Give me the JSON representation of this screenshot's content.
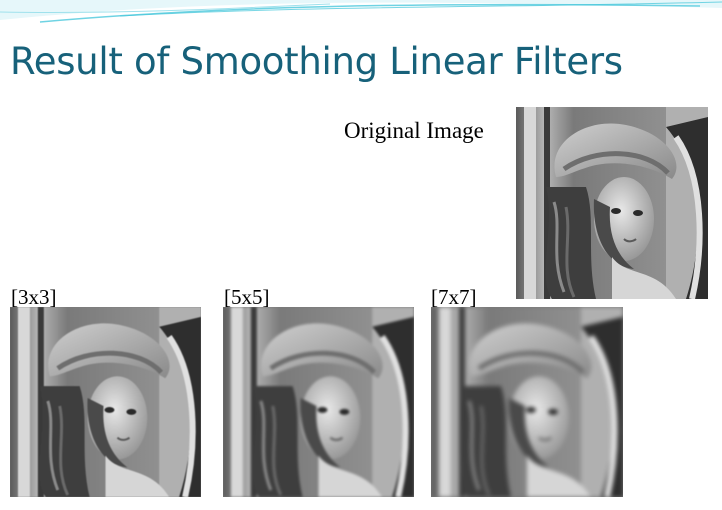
{
  "slide": {
    "title": "Result of Smoothing Linear Filters"
  },
  "original": {
    "caption": "Original Image"
  },
  "filtered": [
    {
      "caption": "[3x3]",
      "blur": 0.6
    },
    {
      "caption": "[5x5]",
      "blur": 1.3
    },
    {
      "caption": "[7x7]",
      "blur": 2.0
    }
  ],
  "colors": {
    "title": "#17617a",
    "accent": "#3fc4d9"
  }
}
